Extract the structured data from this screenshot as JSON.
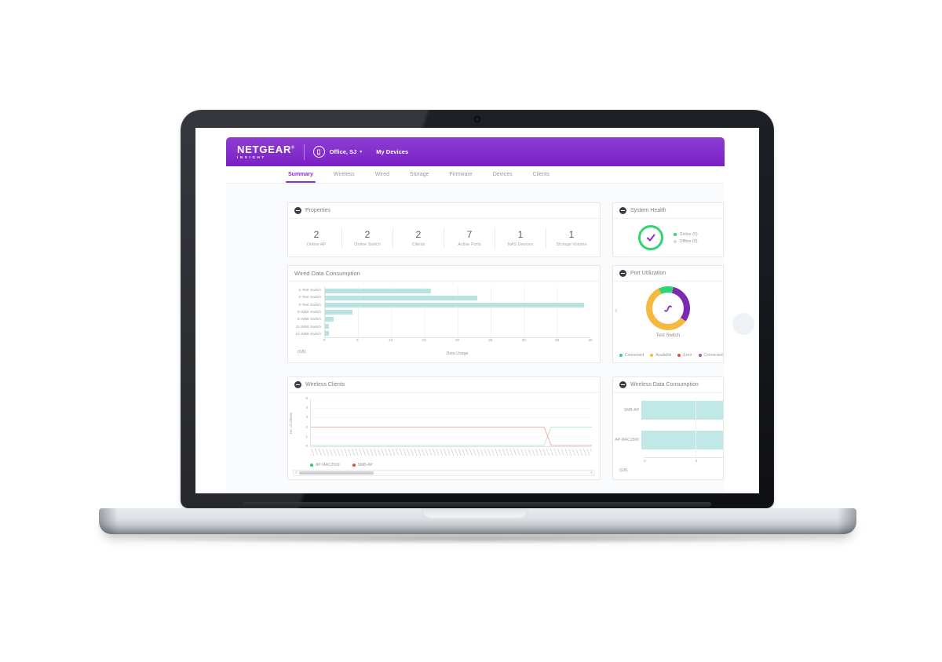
{
  "header": {
    "brand": "NETGEAR",
    "brand_reg": "®",
    "brand_sub": "INSIGHT",
    "org": "Office, SJ",
    "caret": "▾",
    "my_devices": "My Devices"
  },
  "tabs": [
    "Summary",
    "Wireless",
    "Wired",
    "Storage",
    "Firmware",
    "Devices",
    "Clients"
  ],
  "tabs_active_index": 0,
  "panels": {
    "properties": {
      "title": "Properties",
      "stats": [
        {
          "value": "2",
          "label": "Online AP"
        },
        {
          "value": "2",
          "label": "Online Switch"
        },
        {
          "value": "2",
          "label": "Clients"
        },
        {
          "value": "7",
          "label": "Active Ports"
        },
        {
          "value": "1",
          "label": "NAS Devices"
        },
        {
          "value": "1",
          "label": "Storage Volume"
        }
      ]
    },
    "system_health": {
      "title": "System Health",
      "status_ok_color": "#2ed573",
      "check_color": "#8a2fd6",
      "legend": [
        {
          "label": "Online (5)",
          "color": "#2ed573"
        },
        {
          "label": "Offline (0)",
          "color": "#d8d8dc"
        }
      ]
    },
    "wired": {
      "title": "Wired Data Consumption",
      "chart": {
        "type": "bar",
        "orientation": "horizontal",
        "categories": [
          "1-Test Switch",
          "2-Test Switch",
          "3-Test Switch",
          "5-SMB Switch",
          "8-SMB Switch",
          "11-SMB Switch",
          "21-SMB Switch"
        ],
        "values": [
          16,
          23,
          39,
          4.2,
          1.3,
          0.6,
          0.6
        ],
        "xlim": [
          0,
          40
        ],
        "xticks": [
          0,
          5,
          10,
          15,
          20,
          25,
          30,
          35,
          40
        ],
        "xlabel": "Data Usage",
        "unit": "(GB)",
        "bar_color": "#b7e4e3",
        "grid": true
      }
    },
    "port": {
      "title": "Port Utilization",
      "device": "Test Switch",
      "nav_prev": "‹",
      "donut": {
        "type": "pie",
        "start_deg": -25,
        "segments": [
          {
            "label": "Connected",
            "color": "#2ed573",
            "percent": 11
          },
          {
            "label": "Connected a...",
            "color": "#7c2bb0",
            "percent": 31
          },
          {
            "label": "Available",
            "color": "#f6b93f",
            "percent": 58
          }
        ]
      },
      "legend": [
        {
          "label": "Connected",
          "color": "#2ed573"
        },
        {
          "label": "Available",
          "color": "#f6b93f"
        },
        {
          "label": "Error",
          "color": "#e74c3c"
        },
        {
          "label": "Connected a...",
          "color": "#9b59b6"
        }
      ]
    },
    "wireless_clients": {
      "title": "Wireless Clients",
      "chart": {
        "type": "line",
        "ylabel": "No. of Clients",
        "ylim": [
          0,
          5
        ],
        "yticks": [
          5,
          4,
          3,
          2,
          1,
          0
        ],
        "series": [
          {
            "name": "AP-MAC2500",
            "dot_color": "#2ecc71",
            "line_color": "#b2e7c8",
            "points": [
              [
                0,
                0.1
              ],
              [
                83,
                0.1
              ],
              [
                85.5,
                2
              ],
              [
                100,
                2
              ]
            ]
          },
          {
            "name": "SMB-AP",
            "dot_color": "#e74c3c",
            "line_color": "#f2a7a4",
            "points": [
              [
                0,
                2
              ],
              [
                83,
                2
              ],
              [
                85.5,
                0.1
              ],
              [
                100,
                0.1
              ]
            ]
          }
        ],
        "grid": true,
        "legend_position": "bottom"
      },
      "scroll_prev": "‹",
      "scroll_next": "›"
    },
    "wireless_data": {
      "title": "Wireless Data Consumption",
      "chart": {
        "type": "bar",
        "orientation": "horizontal",
        "categories": [
          "SMB-AP",
          "AP-MAC2500"
        ],
        "values": [
          1.5,
          1.5
        ],
        "xticks": [
          0,
          1
        ],
        "unit": "(GB)",
        "bar_color": "#bfe8e7",
        "note": "bars clipped at panel edge"
      }
    }
  }
}
